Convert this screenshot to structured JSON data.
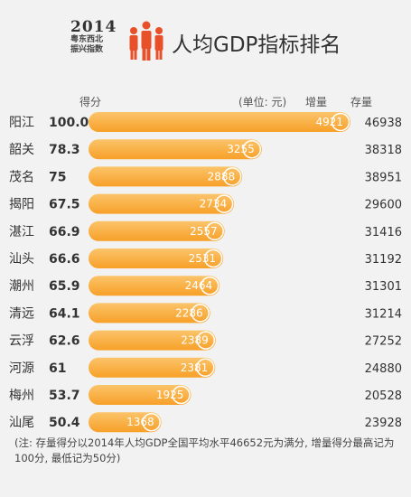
{
  "header": {
    "logo_year": "2014",
    "logo_line1": "粤东西北",
    "logo_line2": "振兴指数",
    "title": "人均GDP指标排名"
  },
  "columns": {
    "score": "得分",
    "unit": "(单位: 元)",
    "increment": "增量",
    "stock": "存量"
  },
  "chart_data": {
    "type": "bar",
    "orientation": "horizontal",
    "categories": [
      "阳江",
      "韶关",
      "茂名",
      "揭阳",
      "湛江",
      "汕头",
      "潮州",
      "清远",
      "云浮",
      "河源",
      "梅州",
      "汕尾"
    ],
    "scores": [
      "100.0",
      "78.3",
      "75",
      "67.5",
      "66.9",
      "66.6",
      "65.9",
      "64.1",
      "62.6",
      "61",
      "53.7",
      "50.4"
    ],
    "series": [
      {
        "name": "增量",
        "values": [
          4921,
          3255,
          2888,
          2734,
          2557,
          2531,
          2464,
          2286,
          2389,
          2381,
          1925,
          1368
        ]
      },
      {
        "name": "存量",
        "values": [
          46938,
          38318,
          38951,
          29600,
          31416,
          31192,
          31301,
          31214,
          27252,
          24880,
          20528,
          23928
        ]
      }
    ],
    "bar_color": "#f7a028",
    "bar_color_light": "#fbc46a"
  },
  "footnote": "(注: 存量得分以2014年人均GDP全国平均水平46652元为满分, 增量得分最高记为100分, 最低记为50分)"
}
